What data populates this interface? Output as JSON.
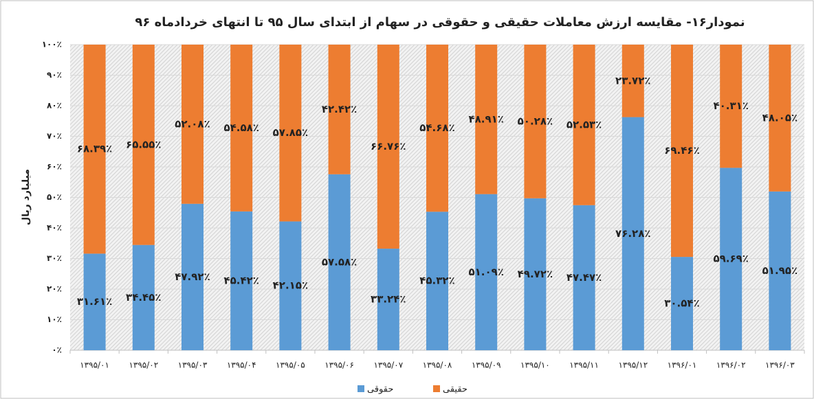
{
  "chart_data": {
    "type": "stacked_bar",
    "title": "نمودار۱۶- مقایسه ارزش معاملات حقیقی و حقوقی در سهام از ابتدای سال ۹۵ تا انتهای خردادماه ۹۶",
    "y_label": "میلیارد ریال",
    "categories": [
      "۱۳۹۵/۰۱",
      "۱۳۹۵/۰۲",
      "۱۳۹۵/۰۳",
      "۱۳۹۵/۰۴",
      "۱۳۹۵/۰۵",
      "۱۳۹۵/۰۶",
      "۱۳۹۵/۰۷",
      "۱۳۹۵/۰۸",
      "۱۳۹۵/۰۹",
      "۱۳۹۵/۱۰",
      "۱۳۹۵/۱۱",
      "۱۳۹۵/۱۲",
      "۱۳۹۶/۰۱",
      "۱۳۹۶/۰۲",
      "۱۳۹۶/۰۳"
    ],
    "series": [
      {
        "name": "حقوقی",
        "color": "#5b9bd5",
        "values": [
          31.61,
          34.45,
          47.92,
          45.42,
          42.15,
          57.58,
          33.24,
          45.32,
          51.09,
          49.72,
          47.47,
          76.28,
          30.54,
          59.69,
          51.95
        ],
        "value_labels": [
          "۳۱.۶۱٪",
          "۳۴.۴۵٪",
          "۴۷.۹۲٪",
          "۴۵.۴۲٪",
          "۴۲.۱۵٪",
          "۵۷.۵۸٪",
          "۳۳.۲۴٪",
          "۴۵.۳۲٪",
          "۵۱.۰۹٪",
          "۴۹.۷۲٪",
          "۴۷.۴۷٪",
          "۷۶.۲۸٪",
          "۳۰.۵۴٪",
          "۵۹.۶۹٪",
          "۵۱.۹۵٪"
        ]
      },
      {
        "name": "حقیقی",
        "color": "#ed7d31",
        "values": [
          68.39,
          65.55,
          52.08,
          54.58,
          57.85,
          42.42,
          66.76,
          54.68,
          48.91,
          50.28,
          52.53,
          23.72,
          69.46,
          40.31,
          48.05
        ],
        "value_labels": [
          "۶۸.۳۹٪",
          "۶۵.۵۵٪",
          "۵۲.۰۸٪",
          "۵۴.۵۸٪",
          "۵۷.۸۵٪",
          "۴۲.۴۲٪",
          "۶۶.۷۶٪",
          "۵۴.۶۸٪",
          "۴۸.۹۱٪",
          "۵۰.۲۸٪",
          "۵۲.۵۳٪",
          "۲۳.۷۲٪",
          "۶۹.۴۶٪",
          "۴۰.۳۱٪",
          "۴۸.۰۵٪"
        ]
      }
    ],
    "ylim": [
      0,
      100
    ],
    "yticks": [
      {
        "value": 0,
        "label": "۰٪"
      },
      {
        "value": 10,
        "label": "۱۰٪"
      },
      {
        "value": 20,
        "label": "۲۰٪"
      },
      {
        "value": 30,
        "label": "۳۰٪"
      },
      {
        "value": 40,
        "label": "۴۰٪"
      },
      {
        "value": 50,
        "label": "۵۰٪"
      },
      {
        "value": 60,
        "label": "۶۰٪"
      },
      {
        "value": 70,
        "label": "۷۰٪"
      },
      {
        "value": 80,
        "label": "۸۰٪"
      },
      {
        "value": 90,
        "label": "۹۰٪"
      },
      {
        "value": 100,
        "label": "۱۰۰٪"
      }
    ],
    "grid": true,
    "legend": "bottom"
  }
}
